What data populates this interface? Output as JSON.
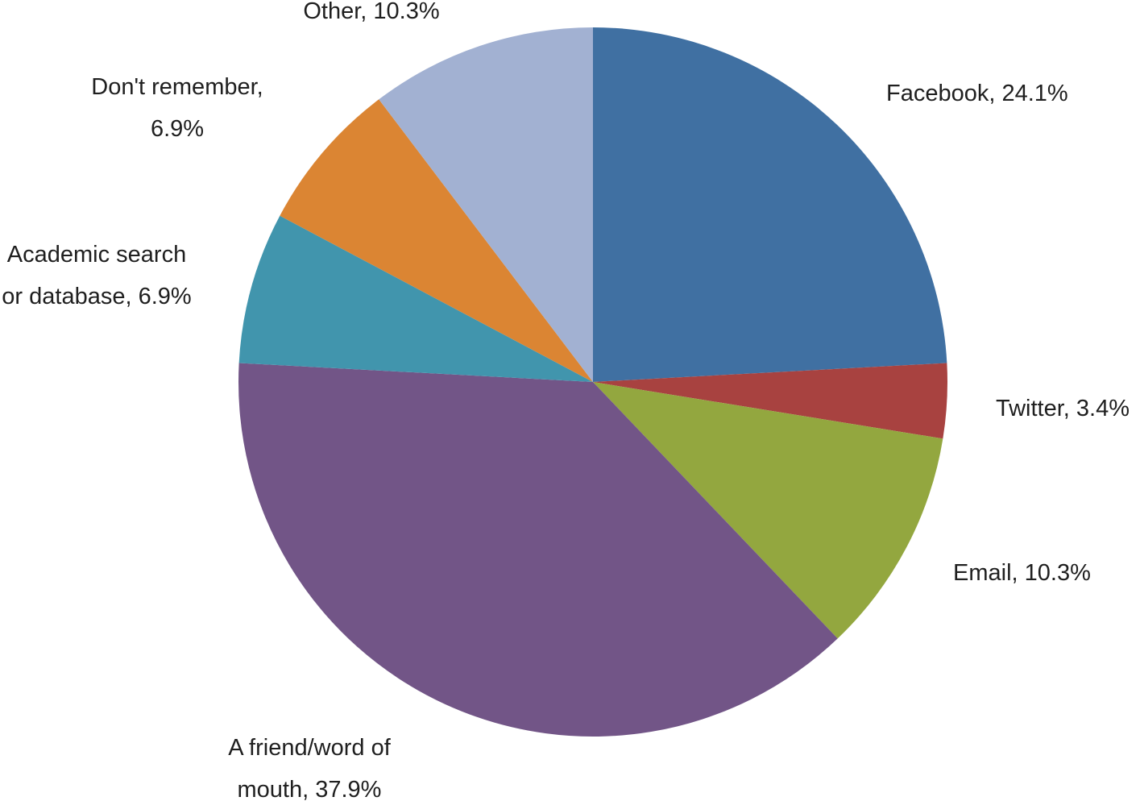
{
  "chart_data": {
    "type": "pie",
    "start": "12 o'clock",
    "direction": "clockwise",
    "slices": [
      {
        "name": "Facebook",
        "value": 24.1,
        "color": "#4070a2",
        "label_lines": [
          "Facebook, 24.1%"
        ]
      },
      {
        "name": "Twitter",
        "value": 3.4,
        "color": "#a84240",
        "label_lines": [
          "Twitter, 3.4%"
        ]
      },
      {
        "name": "Email",
        "value": 10.3,
        "color": "#93a73f",
        "label_lines": [
          "Email, 10.3%"
        ]
      },
      {
        "name": "A friend/word of mouth",
        "value": 37.9,
        "color": "#725587",
        "label_lines": [
          "A friend/word of",
          "mouth, 37.9%"
        ]
      },
      {
        "name": "Academic search or database",
        "value": 6.9,
        "color": "#4195ad",
        "label_lines": [
          "Academic search",
          "or database, 6.9%"
        ]
      },
      {
        "name": "Don't remember",
        "value": 6.9,
        "color": "#db8533",
        "label_lines": [
          "Don't remember,",
          "6.9%"
        ]
      },
      {
        "name": "Other",
        "value": 10.3,
        "color": "#a2b1d2",
        "label_lines": [
          "Other, 10.3%"
        ]
      }
    ]
  }
}
